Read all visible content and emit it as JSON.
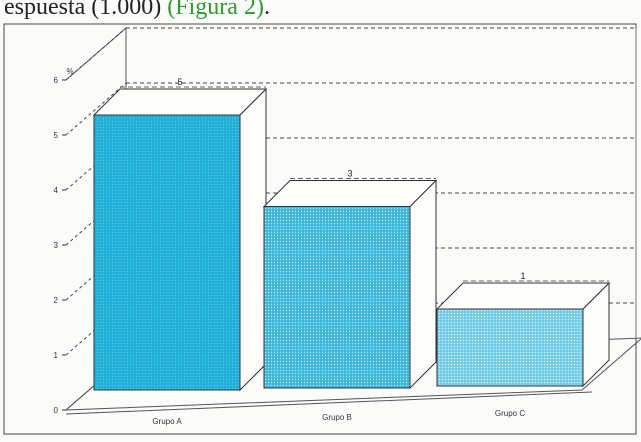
{
  "header": {
    "caption": "espuesta (1.000) (Figura 2).",
    "caption_prefix": "espuesta (1.000) ",
    "caption_link": "(Figura 2)",
    "caption_suffix": "."
  },
  "chart_data": {
    "type": "bar",
    "title": "",
    "xlabel": "",
    "ylabel": "%",
    "ylim": [
      0,
      6
    ],
    "yticks": [
      "0",
      "1",
      "2",
      "3",
      "4",
      "5",
      "6"
    ],
    "grid": true,
    "categories": [
      "Grupo A",
      "Grupo B",
      "Grupo C"
    ],
    "values": [
      5,
      3.3,
      1.4
    ],
    "data_labels": [
      "5",
      "3",
      "1"
    ],
    "colors": [
      "#1fb0d8",
      "#3cb7dc",
      "#6fcce6"
    ]
  }
}
